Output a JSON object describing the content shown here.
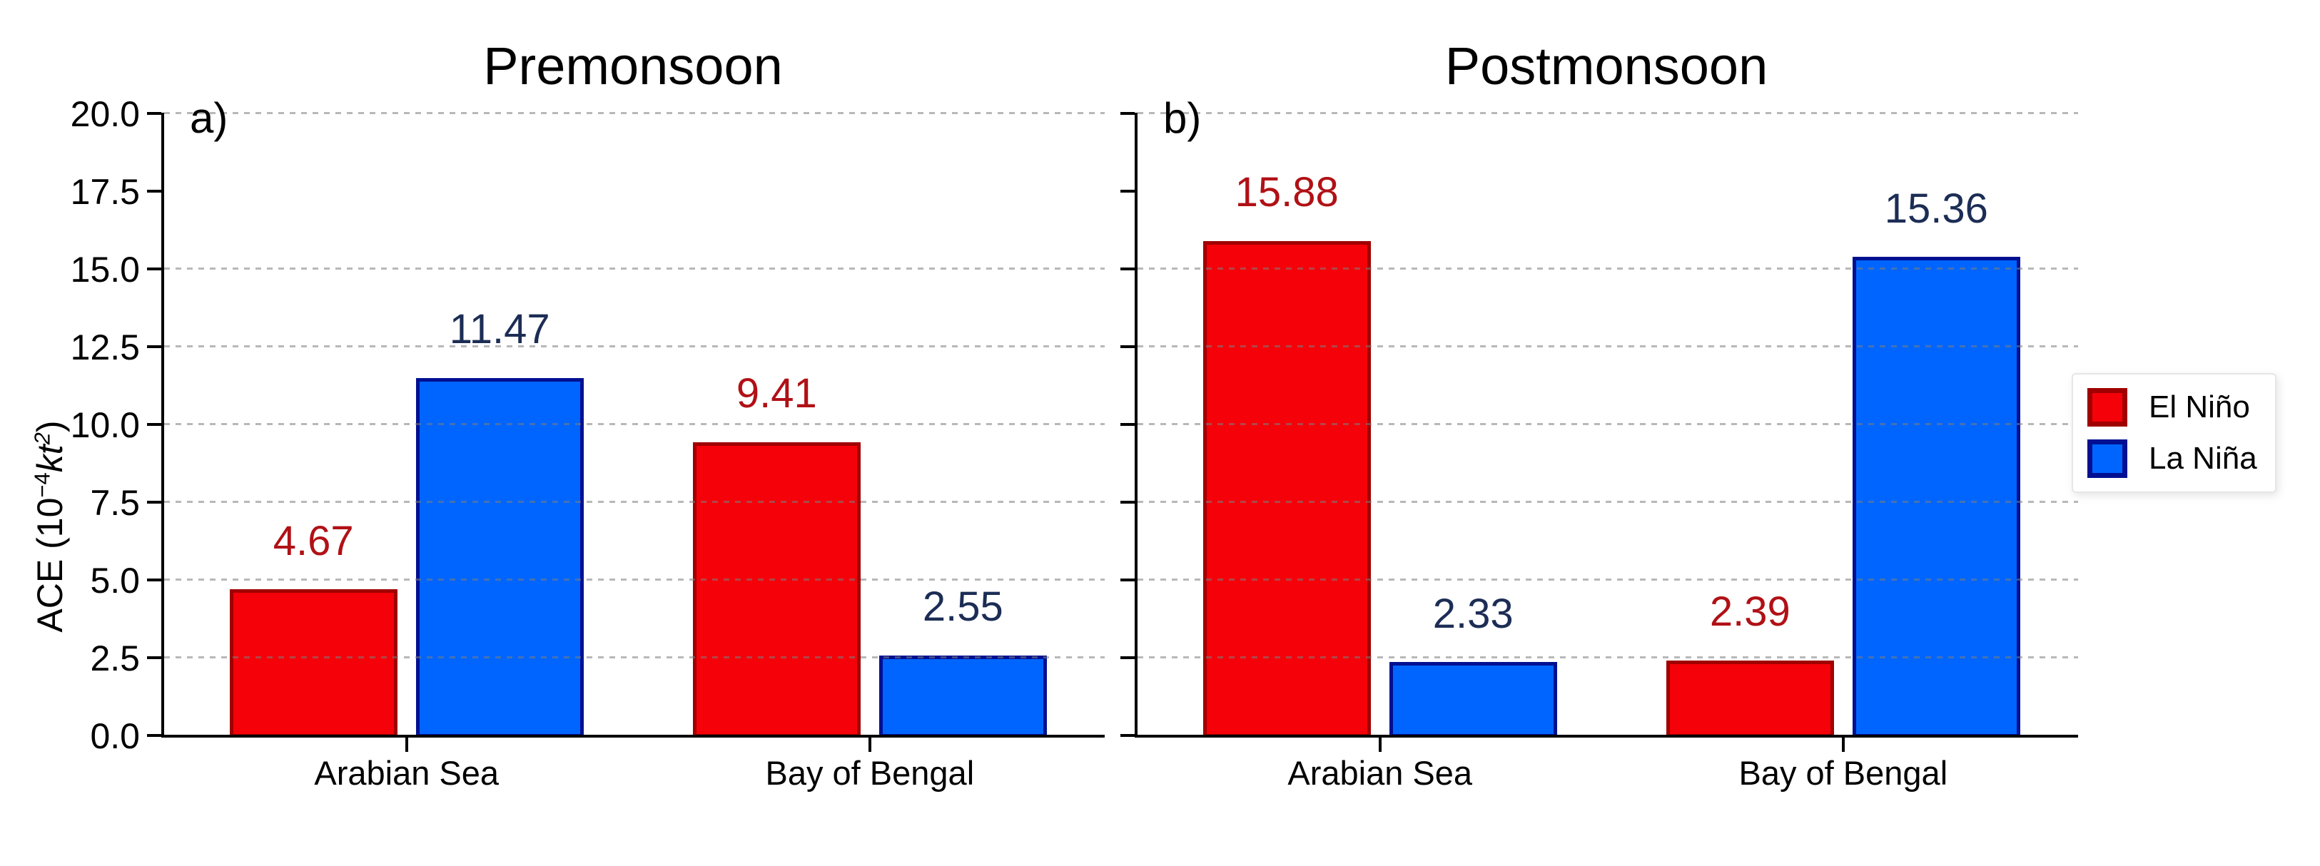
{
  "chart_data": {
    "type": "bar",
    "categories": [
      "Arabian Sea",
      "Bay of Bengal"
    ],
    "panels": [
      {
        "tag": "a)",
        "title": "Premonsoon",
        "series": [
          {
            "name": "El Niño",
            "values": [
              4.67,
              9.41
            ]
          },
          {
            "name": "La Niña",
            "values": [
              11.47,
              2.55
            ]
          }
        ]
      },
      {
        "tag": "b)",
        "title": "Postmonsoon",
        "series": [
          {
            "name": "El Niño",
            "values": [
              15.88,
              2.39
            ]
          },
          {
            "name": "La Niña",
            "values": [
              2.33,
              15.36
            ]
          }
        ]
      }
    ],
    "ylabel": "ACE (10⁻⁴kt²)",
    "ylabel_parts": [
      {
        "t": "ACE (10"
      },
      {
        "sup": "−4"
      },
      {
        "i": "kt"
      },
      {
        "isup": "2"
      },
      {
        "t": ")"
      }
    ],
    "xlabel": "",
    "ylim": [
      0,
      20
    ],
    "yticks": [
      0,
      2.5,
      5,
      7.5,
      10,
      12.5,
      15,
      17.5,
      20
    ],
    "ytick_labels": [
      "0.0",
      "2.5",
      "5.0",
      "7.5",
      "10.0",
      "12.5",
      "15.0",
      "17.5",
      "20.0"
    ],
    "gridline_values": [
      2.5,
      5,
      7.5,
      10,
      12.5,
      15,
      20
    ],
    "grid_style": "horizontal-dashed",
    "legend_position": "center-right",
    "series_styles": [
      {
        "name": "El Niño",
        "fill": "#f40109",
        "edge": "#a00000",
        "label_color": "#b01116"
      },
      {
        "name": "La Niña",
        "fill": "#0065fe",
        "edge": "#001091",
        "label_color": "#1c2d55"
      }
    ]
  },
  "legend": {
    "entries": [
      {
        "label": "El Niño",
        "swatch_fill": "#f40109",
        "swatch_edge": "#a00000"
      },
      {
        "label": "La Niña",
        "swatch_fill": "#0065fe",
        "swatch_edge": "#001091"
      }
    ]
  }
}
